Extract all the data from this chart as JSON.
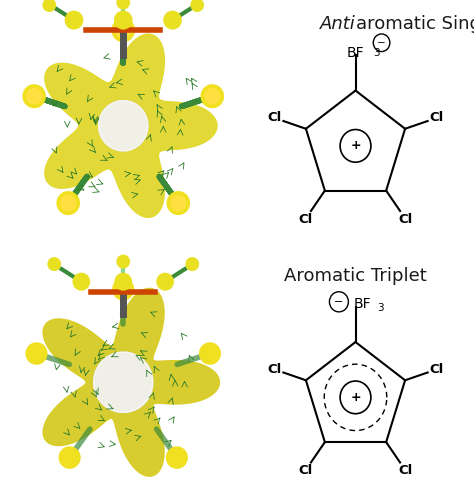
{
  "title1": "Antiaromatic Singlet",
  "title2": "Aromatic Triplet",
  "title1_italic_part": "Anti",
  "title1_normal_part": "aromatic Singlet",
  "bg_color": "#ffffff",
  "text_color": "#1a1a1a",
  "title_fontsize": 13,
  "label_fontsize": 9.5,
  "formula_fontsize": 10,
  "fig_width": 4.74,
  "fig_height": 5.03,
  "dpi": 100,
  "left_panel_color": "#e8e0c8",
  "molecule_bg": "#f5f0e8"
}
